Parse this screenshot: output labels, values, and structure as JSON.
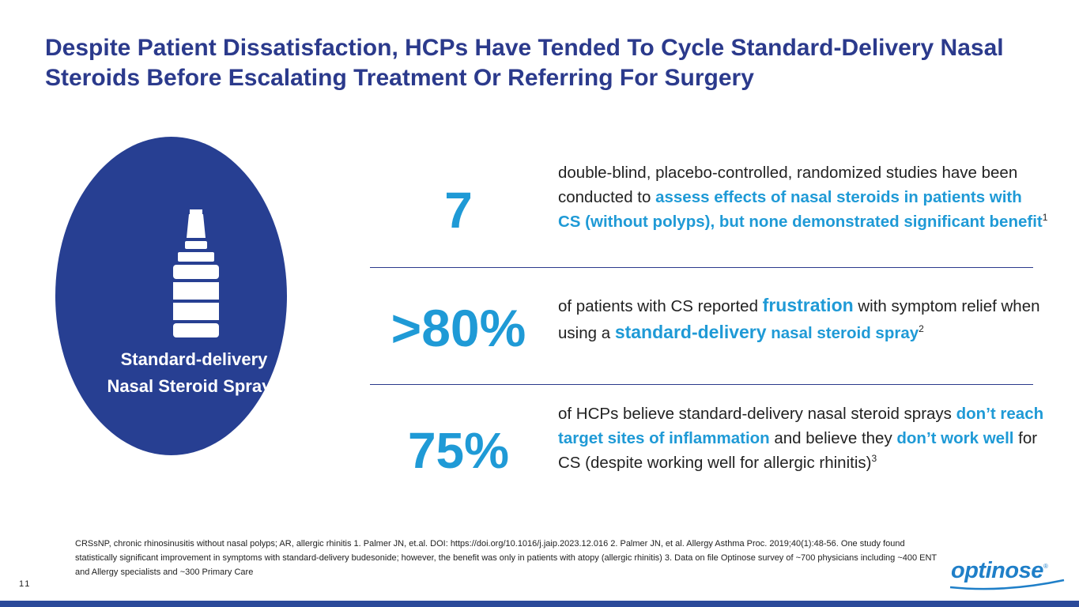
{
  "slide": {
    "title": "Despite Patient Dissatisfaction, HCPs Have Tended To Cycle Standard-Delivery Nasal Steroids Before Escalating Treatment Or Referring For Surgery",
    "page_number": "11"
  },
  "circle": {
    "label_line1": "Standard-delivery",
    "label_line2": "Nasal Steroid Sprays",
    "icon": "nasal-spray-bottle-icon"
  },
  "stats": [
    {
      "value": "7",
      "text_a": "double-blind, placebo-controlled, randomized studies have been conducted to ",
      "highlight_a": "assess effects of nasal steroids in patients with CS (without polyps), but none demonstrated significant benefit",
      "sup": "1"
    },
    {
      "value": ">80%",
      "text_a": "of patients with CS reported ",
      "highlight_a": "frustration",
      "text_b": " with symptom relief when using a ",
      "highlight_b": "standard-delivery",
      "highlight_c": " nasal steroid spray",
      "sup": "2"
    },
    {
      "value": "75%",
      "text_a": "of HCPs believe standard-delivery nasal steroid sprays ",
      "highlight_a": "don’t reach target sites of inflammation",
      "text_b": " and believe they ",
      "highlight_b": "don’t work well",
      "text_c": " for CS (despite working well for allergic rhinitis)",
      "sup": "3"
    }
  ],
  "footnote": "CRSsNP, chronic rhinosinusitis without nasal polyps; AR, allergic rhinitis 1. Palmer JN, et.al. DOI: https://doi.org/10.1016/j.jaip.2023.12.016 2. Palmer JN, et al. Allergy Asthma Proc. 2019;40(1):48-56. One study found statistically significant improvement in symptoms with standard-delivery budesonide; however, the benefit was only in patients with atopy (allergic rhinitis) 3. Data on file Optinose survey of ~700 physicians including ~400 ENT and Allergy specialists and ~300 Primary Care",
  "logo": {
    "text": "optinose",
    "reg": "®"
  },
  "colors": {
    "title": "#2b3a8c",
    "circle": "#273f92",
    "accent": "#1f9ad6",
    "divider": "#2b3a8c"
  }
}
